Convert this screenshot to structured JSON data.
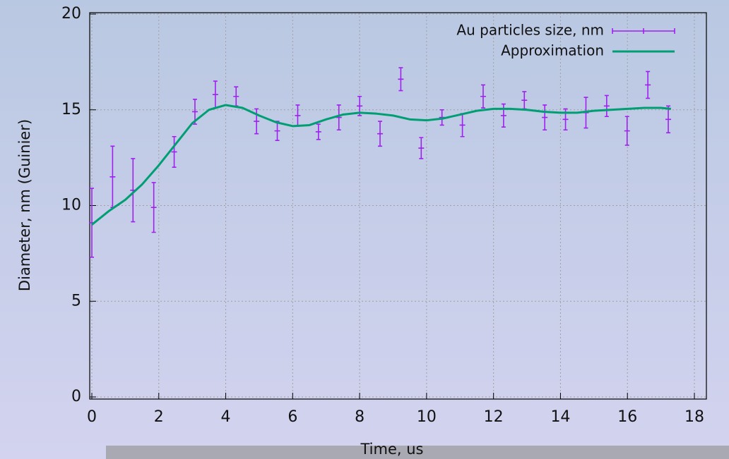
{
  "chart_data": {
    "type": "errorbar",
    "x_label": "Time, us",
    "y_label": "Diameter, nm (Guinier)",
    "xlim": [
      0,
      18
    ],
    "ylim": [
      0,
      20
    ],
    "xticks": [
      0,
      2,
      4,
      6,
      8,
      10,
      12,
      14,
      16,
      18
    ],
    "yticks": [
      0,
      5,
      10,
      15,
      20
    ],
    "grid": true,
    "legend": "top-right",
    "series": [
      {
        "name": "Au particles size, nm",
        "color": "#a020f0",
        "kind": "errorbar",
        "x": [
          0,
          0.62,
          1.23,
          1.85,
          2.46,
          3.08,
          3.69,
          4.31,
          4.92,
          5.54,
          6.15,
          6.77,
          7.38,
          8.0,
          8.61,
          9.23,
          9.84,
          10.46,
          11.07,
          11.69,
          12.3,
          12.92,
          13.53,
          14.15,
          14.76,
          15.38,
          15.99,
          16.61,
          17.22
        ],
        "values": [
          9.1,
          11.5,
          10.8,
          9.9,
          12.8,
          14.9,
          15.8,
          15.7,
          14.4,
          13.9,
          14.7,
          13.85,
          14.6,
          15.2,
          13.75,
          16.6,
          13.0,
          14.6,
          14.2,
          15.7,
          14.7,
          15.5,
          14.6,
          14.5,
          14.85,
          15.2,
          13.9,
          16.3,
          14.5
        ],
        "errors": [
          1.8,
          1.6,
          1.65,
          1.3,
          0.8,
          0.65,
          0.7,
          0.5,
          0.65,
          0.5,
          0.55,
          0.4,
          0.65,
          0.5,
          0.65,
          0.6,
          0.55,
          0.4,
          0.6,
          0.6,
          0.6,
          0.45,
          0.65,
          0.55,
          0.8,
          0.55,
          0.75,
          0.7,
          0.7
        ]
      },
      {
        "name": "Approximation",
        "color": "#009e73",
        "kind": "line",
        "x": [
          0,
          0.5,
          1,
          1.5,
          2,
          2.5,
          3,
          3.5,
          4,
          4.5,
          5,
          5.5,
          6,
          6.5,
          7,
          7.5,
          8,
          8.5,
          9,
          9.5,
          10,
          10.5,
          11,
          11.5,
          12,
          12.5,
          13,
          13.5,
          14,
          14.5,
          15,
          15.5,
          16,
          16.5,
          17,
          17.3
        ],
        "values": [
          9.0,
          9.7,
          10.3,
          11.1,
          12.1,
          13.2,
          14.3,
          15.0,
          15.25,
          15.1,
          14.7,
          14.35,
          14.15,
          14.2,
          14.5,
          14.75,
          14.85,
          14.8,
          14.7,
          14.5,
          14.45,
          14.55,
          14.75,
          14.95,
          15.05,
          15.05,
          15.0,
          14.9,
          14.85,
          14.85,
          14.95,
          15.0,
          15.05,
          15.1,
          15.1,
          15.05
        ]
      }
    ]
  }
}
